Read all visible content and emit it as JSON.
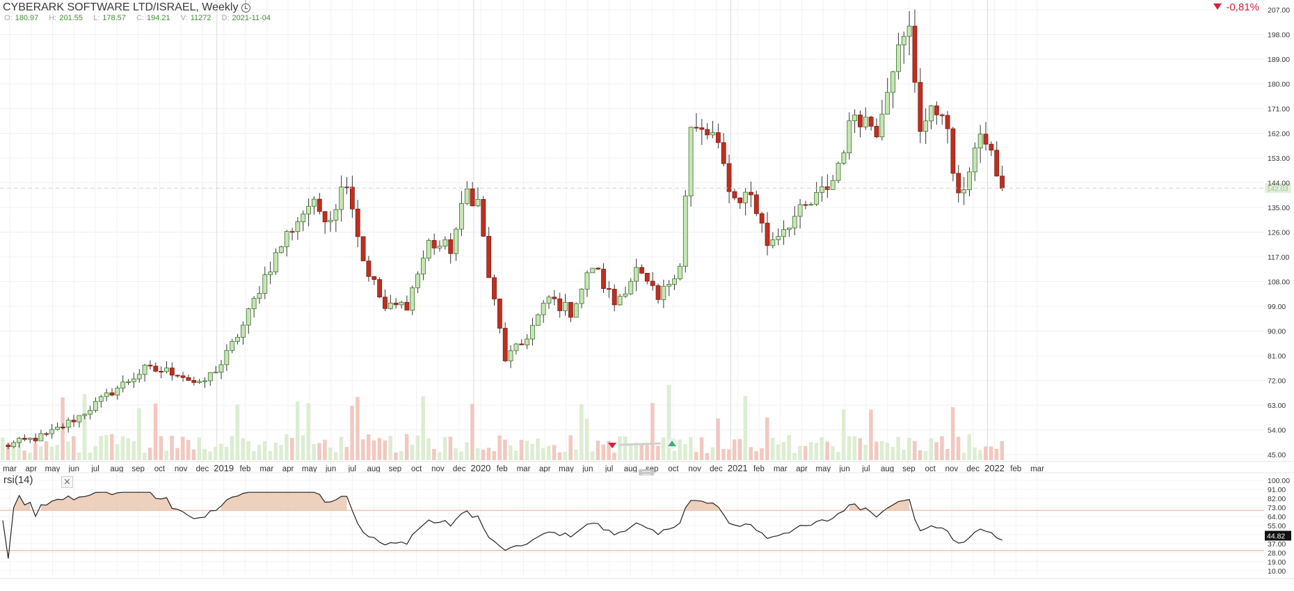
{
  "header": {
    "title": "CYBERARK SOFTWARE LTD/ISRAEL, Weekly",
    "ohlc": [
      {
        "key": "O:",
        "value": "180.97"
      },
      {
        "key": "H:",
        "value": "201.55"
      },
      {
        "key": "L:",
        "value": "178.57"
      },
      {
        "key": "C:",
        "value": "194.21"
      },
      {
        "key": "V:",
        "value": "11272"
      },
      {
        "key": "D:",
        "value": "2021-11-04"
      }
    ],
    "change": "-0,81%"
  },
  "indicator": {
    "label": "rsi(14)",
    "close_label": "×"
  },
  "chart_data": [
    {
      "type": "candlestick",
      "title": "CYBERARK SOFTWARE LTD/ISRAEL, Weekly",
      "y_ticks": [
        "207.00",
        "198.00",
        "189.00",
        "180.00",
        "171.00",
        "162.00",
        "153.00",
        "144.00",
        "135.00",
        "126.00",
        "117.00",
        "108.00",
        "99.00",
        "90.00",
        "81.00",
        "72.00",
        "63.00",
        "54.00",
        "45.00"
      ],
      "ylim": [
        43,
        208
      ],
      "current_price": "142.03",
      "x_labels": [
        "mar",
        "apr",
        "may",
        "jun",
        "jul",
        "aug",
        "sep",
        "oct",
        "nov",
        "dec",
        "2019",
        "feb",
        "mar",
        "apr",
        "may",
        "jun",
        "jul",
        "aug",
        "sep",
        "oct",
        "nov",
        "dec",
        "2020",
        "feb",
        "mar",
        "apr",
        "may",
        "jun",
        "jul",
        "aug",
        "sep",
        "oct",
        "nov",
        "dec",
        "2021",
        "feb",
        "mar",
        "apr",
        "may",
        "jun",
        "jul",
        "aug",
        "sep",
        "oct",
        "nov",
        "dec",
        "2022",
        "feb",
        "mar"
      ],
      "anchors": [
        {
          "i": 0,
          "p": 48
        },
        {
          "i": 8,
          "p": 52
        },
        {
          "i": 14,
          "p": 59
        },
        {
          "i": 20,
          "p": 68
        },
        {
          "i": 26,
          "p": 76
        },
        {
          "i": 32,
          "p": 75
        },
        {
          "i": 36,
          "p": 70
        },
        {
          "i": 40,
          "p": 78
        },
        {
          "i": 44,
          "p": 92
        },
        {
          "i": 48,
          "p": 110
        },
        {
          "i": 52,
          "p": 125
        },
        {
          "i": 56,
          "p": 136
        },
        {
          "i": 60,
          "p": 132
        },
        {
          "i": 63,
          "p": 146
        },
        {
          "i": 66,
          "p": 116
        },
        {
          "i": 70,
          "p": 98
        },
        {
          "i": 74,
          "p": 100
        },
        {
          "i": 78,
          "p": 122
        },
        {
          "i": 82,
          "p": 120
        },
        {
          "i": 85,
          "p": 141
        },
        {
          "i": 87,
          "p": 137
        },
        {
          "i": 89,
          "p": 110
        },
        {
          "i": 92,
          "p": 80
        },
        {
          "i": 95,
          "p": 85
        },
        {
          "i": 100,
          "p": 102
        },
        {
          "i": 104,
          "p": 97
        },
        {
          "i": 108,
          "p": 114
        },
        {
          "i": 112,
          "p": 100
        },
        {
          "i": 116,
          "p": 112
        },
        {
          "i": 120,
          "p": 101
        },
        {
          "i": 124,
          "p": 115
        },
        {
          "i": 126,
          "p": 163
        },
        {
          "i": 130,
          "p": 161
        },
        {
          "i": 134,
          "p": 138
        },
        {
          "i": 137,
          "p": 140
        },
        {
          "i": 140,
          "p": 122
        },
        {
          "i": 144,
          "p": 130
        },
        {
          "i": 148,
          "p": 136
        },
        {
          "i": 152,
          "p": 145
        },
        {
          "i": 156,
          "p": 170
        },
        {
          "i": 160,
          "p": 164
        },
        {
          "i": 163,
          "p": 188
        },
        {
          "i": 166,
          "p": 199
        },
        {
          "i": 168,
          "p": 165
        },
        {
          "i": 172,
          "p": 172
        },
        {
          "i": 175,
          "p": 137
        },
        {
          "i": 178,
          "p": 156
        },
        {
          "i": 180,
          "p": 160
        },
        {
          "i": 183,
          "p": 142
        }
      ],
      "colors": {
        "up": "#6db256",
        "down": "#b52d1e",
        "up_fill": "#c6e6b4",
        "down_fill": "#c12e1f"
      }
    },
    {
      "type": "line",
      "title": "rsi(14)",
      "y_ticks": [
        "100.00",
        "91.00",
        "82.00",
        "73.00",
        "64.00",
        "55.00",
        "46.00",
        "37.00",
        "28.00",
        "19.00",
        "10.00"
      ],
      "ylim": [
        5,
        102
      ],
      "current_value": "44.82",
      "overbought": 70,
      "oversold": 30
    }
  ]
}
